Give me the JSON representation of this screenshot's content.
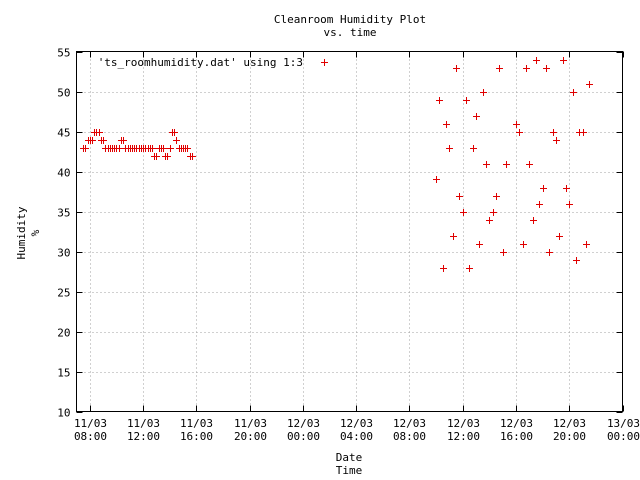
{
  "chart_data": {
    "type": "scatter",
    "title": "Cleanroom Humidity Plot",
    "subtitle": "vs. time",
    "xlabel_lines": [
      "Date",
      "Time"
    ],
    "ylabel_lines": [
      "Humidity",
      "%"
    ],
    "ylim": [
      10,
      55
    ],
    "y_ticks": [
      10,
      15,
      20,
      25,
      30,
      35,
      40,
      45,
      50,
      55
    ],
    "xlim": [
      "11/03 07:00",
      "13/03 00:00"
    ],
    "x_ticks": [
      {
        "t": "11/03 08:00",
        "date": "11/03",
        "time": "08:00"
      },
      {
        "t": "11/03 12:00",
        "date": "11/03",
        "time": "12:00"
      },
      {
        "t": "11/03 16:00",
        "date": "11/03",
        "time": "16:00"
      },
      {
        "t": "11/03 20:00",
        "date": "11/03",
        "time": "20:00"
      },
      {
        "t": "12/03 00:00",
        "date": "12/03",
        "time": "00:00"
      },
      {
        "t": "12/03 04:00",
        "date": "12/03",
        "time": "04:00"
      },
      {
        "t": "12/03 08:00",
        "date": "12/03",
        "time": "08:00"
      },
      {
        "t": "12/03 12:00",
        "date": "12/03",
        "time": "12:00"
      },
      {
        "t": "12/03 16:00",
        "date": "12/03",
        "time": "16:00"
      },
      {
        "t": "12/03 20:00",
        "date": "12/03",
        "time": "20:00"
      },
      {
        "t": "13/03 00:00",
        "date": "13/03",
        "time": "00:00"
      }
    ],
    "grid": true,
    "legend_position": "top-left",
    "series": [
      {
        "name": "'ts_roomhumidity.dat' using 1:3",
        "color": "#e00000",
        "marker": "plus",
        "points": [
          [
            "11/03 07:30",
            43
          ],
          [
            "11/03 07:40",
            43
          ],
          [
            "11/03 07:50",
            44
          ],
          [
            "11/03 08:00",
            44
          ],
          [
            "11/03 08:10",
            44
          ],
          [
            "11/03 08:20",
            45
          ],
          [
            "11/03 08:30",
            45
          ],
          [
            "11/03 08:40",
            45
          ],
          [
            "11/03 08:50",
            44
          ],
          [
            "11/03 09:00",
            44
          ],
          [
            "11/03 09:10",
            43
          ],
          [
            "11/03 09:20",
            43
          ],
          [
            "11/03 09:30",
            43
          ],
          [
            "11/03 09:40",
            43
          ],
          [
            "11/03 09:50",
            43
          ],
          [
            "11/03 10:00",
            43
          ],
          [
            "11/03 10:10",
            43
          ],
          [
            "11/03 10:20",
            44
          ],
          [
            "11/03 10:30",
            44
          ],
          [
            "11/03 10:40",
            43
          ],
          [
            "11/03 10:50",
            43
          ],
          [
            "11/03 11:00",
            43
          ],
          [
            "11/03 11:10",
            43
          ],
          [
            "11/03 11:20",
            43
          ],
          [
            "11/03 11:30",
            43
          ],
          [
            "11/03 11:40",
            43
          ],
          [
            "11/03 11:50",
            43
          ],
          [
            "11/03 12:00",
            43
          ],
          [
            "11/03 12:10",
            43
          ],
          [
            "11/03 12:20",
            43
          ],
          [
            "11/03 12:30",
            43
          ],
          [
            "11/03 12:40",
            43
          ],
          [
            "11/03 12:50",
            42
          ],
          [
            "11/03 13:00",
            42
          ],
          [
            "11/03 13:10",
            43
          ],
          [
            "11/03 13:20",
            43
          ],
          [
            "11/03 13:30",
            43
          ],
          [
            "11/03 13:40",
            42
          ],
          [
            "11/03 13:50",
            42
          ],
          [
            "11/03 14:00",
            43
          ],
          [
            "11/03 14:10",
            45
          ],
          [
            "11/03 14:20",
            45
          ],
          [
            "11/03 14:30",
            44
          ],
          [
            "11/03 14:40",
            43
          ],
          [
            "11/03 14:50",
            43
          ],
          [
            "11/03 15:00",
            43
          ],
          [
            "11/03 15:10",
            43
          ],
          [
            "11/03 15:20",
            43
          ],
          [
            "11/03 15:30",
            42
          ],
          [
            "11/03 15:40",
            42
          ],
          [
            "12/03 10:00",
            39
          ],
          [
            "12/03 10:15",
            49
          ],
          [
            "12/03 10:30",
            28
          ],
          [
            "12/03 10:45",
            46
          ],
          [
            "12/03 11:00",
            43
          ],
          [
            "12/03 11:15",
            32
          ],
          [
            "12/03 11:30",
            53
          ],
          [
            "12/03 11:45",
            37
          ],
          [
            "12/03 12:00",
            35
          ],
          [
            "12/03 12:15",
            49
          ],
          [
            "12/03 12:30",
            28
          ],
          [
            "12/03 12:45",
            43
          ],
          [
            "12/03 13:00",
            47
          ],
          [
            "12/03 13:15",
            31
          ],
          [
            "12/03 13:30",
            50
          ],
          [
            "12/03 13:45",
            41
          ],
          [
            "12/03 14:00",
            34
          ],
          [
            "12/03 14:15",
            35
          ],
          [
            "12/03 14:30",
            37
          ],
          [
            "12/03 14:45",
            53
          ],
          [
            "12/03 15:00",
            30
          ],
          [
            "12/03 15:15",
            41
          ],
          [
            "12/03 16:00",
            46
          ],
          [
            "12/03 16:15",
            45
          ],
          [
            "12/03 16:30",
            31
          ],
          [
            "12/03 16:45",
            53
          ],
          [
            "12/03 17:00",
            41
          ],
          [
            "12/03 17:15",
            34
          ],
          [
            "12/03 17:30",
            54
          ],
          [
            "12/03 17:45",
            36
          ],
          [
            "12/03 18:00",
            38
          ],
          [
            "12/03 18:15",
            53
          ],
          [
            "12/03 18:30",
            30
          ],
          [
            "12/03 18:45",
            45
          ],
          [
            "12/03 19:00",
            44
          ],
          [
            "12/03 19:15",
            32
          ],
          [
            "12/03 19:30",
            54
          ],
          [
            "12/03 19:45",
            38
          ],
          [
            "12/03 20:00",
            36
          ],
          [
            "12/03 20:15",
            50
          ],
          [
            "12/03 20:30",
            29
          ],
          [
            "12/03 20:45",
            45
          ],
          [
            "12/03 21:00",
            45
          ],
          [
            "12/03 21:15",
            31
          ],
          [
            "12/03 21:30",
            51
          ]
        ]
      }
    ]
  }
}
